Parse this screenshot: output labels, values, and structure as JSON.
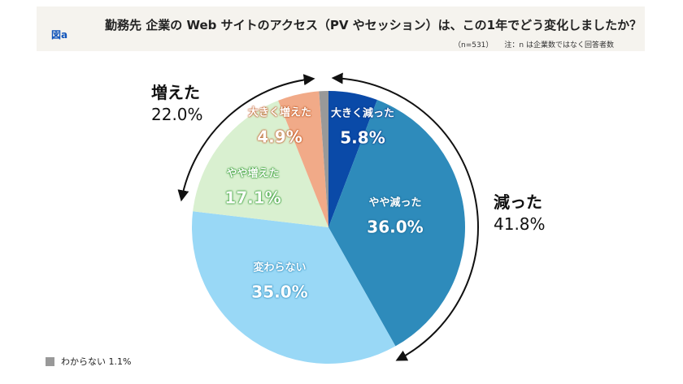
{
  "header": {
    "figure_label": "図a",
    "title": "勤務先 企業の Web サイトのアクセス（PV やセッション）は、この1年でどう変化しましたか？",
    "sample": "（n=531）",
    "note": "注：n は企業数ではなく回答者数"
  },
  "chart_data": {
    "type": "pie",
    "title": "勤務先 企業の Web サイトのアクセス（PV やセッション）は、この1年でどう変化しましたか？",
    "unit": "%",
    "start": "top",
    "direction": "clockwise",
    "slices": [
      {
        "label": "大きく減った",
        "value": 5.8,
        "value_label": "5.8%",
        "color": "#0a4aa8"
      },
      {
        "label": "やや減った",
        "value": 36.0,
        "value_label": "36.0%",
        "color": "#2e8bbb"
      },
      {
        "label": "変わらない",
        "value": 35.0,
        "value_label": "35.0%",
        "color": "#99d8f6"
      },
      {
        "label": "やや増えた",
        "value": 17.1,
        "value_label": "17.1%",
        "color": "#d9f0d0"
      },
      {
        "label": "大きく増えた",
        "value": 4.9,
        "value_label": "4.9%",
        "color": "#f1aa88"
      },
      {
        "label": "わからない",
        "value": 1.1,
        "value_label": "1.1%",
        "color": "#999999"
      }
    ],
    "groups": [
      {
        "label": "減った",
        "value_label": "41.8%",
        "value": 41.8
      },
      {
        "label": "増えた",
        "value_label": "22.0%",
        "value": 22.0
      }
    ],
    "legend": {
      "label": "わからない",
      "value_label": "1.1%"
    }
  }
}
